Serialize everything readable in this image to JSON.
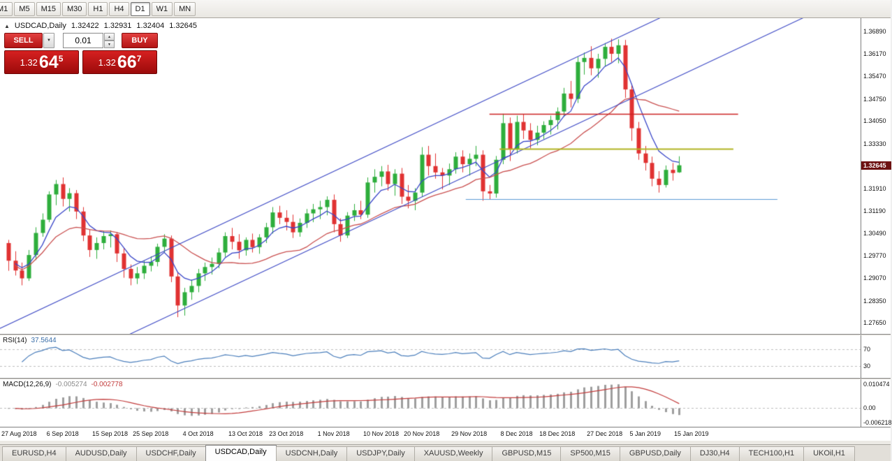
{
  "toolbar": {
    "timeframes": [
      "M1",
      "M5",
      "M15",
      "M30",
      "H1",
      "H4",
      "D1",
      "W1",
      "MN"
    ],
    "active": "D1"
  },
  "chart": {
    "header": {
      "collapse_icon": "▲",
      "symbol_label": "USDCAD,Daily",
      "open": "1.32422",
      "high": "1.32931",
      "low": "1.32404",
      "close": "1.32645"
    },
    "price_axis_labels": [
      "1.36890",
      "1.36170",
      "1.35470",
      "1.34750",
      "1.34050",
      "1.33330",
      "1.31910",
      "1.31190",
      "1.30490",
      "1.29770",
      "1.29070",
      "1.28350",
      "1.27650"
    ],
    "current_price_tag": "1.32645"
  },
  "trade_panel": {
    "sell_label": "SELL",
    "buy_label": "BUY",
    "volume": "0.01",
    "dropdown_icon": "▼",
    "spin_up_icon": "▲",
    "spin_down_icon": "▼",
    "sell_quote": {
      "prefix": "1.32",
      "big": "64",
      "sup": "5"
    },
    "buy_quote": {
      "prefix": "1.32",
      "big": "66",
      "sup": "7"
    }
  },
  "rsi": {
    "label": "RSI(14)",
    "value": "37.5644",
    "levels": [
      "70",
      "30"
    ]
  },
  "macd": {
    "label": "MACD(12,26,9)",
    "value_main": "-0.005274",
    "value_signal": "-0.002778",
    "axis_labels": [
      "0.010474",
      "0.00",
      "-0.006218"
    ]
  },
  "date_axis": {
    "labels": [
      {
        "text": "27 Aug 2018",
        "i": 0
      },
      {
        "text": "6 Sep 2018",
        "i": 8
      },
      {
        "text": "15 Sep 2018",
        "i": 15
      },
      {
        "text": "25 Sep 2018",
        "i": 21
      },
      {
        "text": "4 Oct 2018",
        "i": 28
      },
      {
        "text": "13 Oct 2018",
        "i": 35
      },
      {
        "text": "23 Oct 2018",
        "i": 41
      },
      {
        "text": "1 Nov 2018",
        "i": 48
      },
      {
        "text": "10 Nov 2018",
        "i": 55
      },
      {
        "text": "20 Nov 2018",
        "i": 61
      },
      {
        "text": "29 Nov 2018",
        "i": 68
      },
      {
        "text": "8 Dec 2018",
        "i": 75
      },
      {
        "text": "18 Dec 2018",
        "i": 81
      },
      {
        "text": "27 Dec 2018",
        "i": 88
      },
      {
        "text": "5 Jan 2019",
        "i": 94
      },
      {
        "text": "15 Jan 2019",
        "i": 100.8
      }
    ]
  },
  "tabs": [
    "EURUSD,H4",
    "AUDUSD,Daily",
    "USDCHF,Daily",
    "USDCAD,Daily",
    "USDCNH,Daily",
    "USDJPY,Daily",
    "XAUUSD,Weekly",
    "GBPUSD,M15",
    "SP500,M15",
    "GBPUSD,Daily",
    "DJ30,H4",
    "TECH100,H1",
    "UKOil,H1"
  ],
  "active_tab": "USDCAD,Daily",
  "colors": {
    "bull": "#2eae3c",
    "bear": "#e03232",
    "ma_fast": "#3946c8",
    "ma_slow": "#c94f4f",
    "trendline": "#3b47c4",
    "hline_red": "#cc2222",
    "hline_olive": "#b0b420",
    "hline_blue": "#5b9bd5",
    "rsi_line": "#4a7ebb",
    "level_dash": "#bdbdbd",
    "macd_hist": "#9e9e9e",
    "macd_signal": "#c23b3b",
    "price_tag_bg": "#6d1111",
    "sell_buy_red": "#c01818"
  },
  "chart_data": {
    "type": "candlestick",
    "symbol": "USDCAD",
    "timeframe": "Daily",
    "last_ohlc": {
      "open": 1.32422,
      "high": 1.32931,
      "low": 1.32404,
      "close": 1.32645
    },
    "y_range": [
      1.273,
      1.3731
    ],
    "candles": [
      [
        1.3018,
        1.3028,
        1.293,
        1.2962
      ],
      [
        1.2962,
        1.2992,
        1.2915,
        1.2931
      ],
      [
        1.2931,
        1.2956,
        1.2884,
        1.2906
      ],
      [
        1.2906,
        1.2996,
        1.2898,
        1.298
      ],
      [
        1.298,
        1.3068,
        1.2964,
        1.305
      ],
      [
        1.305,
        1.3112,
        1.3038,
        1.3092
      ],
      [
        1.3092,
        1.3182,
        1.3084,
        1.3172
      ],
      [
        1.3172,
        1.3218,
        1.3138,
        1.3205
      ],
      [
        1.3205,
        1.3226,
        1.3134,
        1.3158
      ],
      [
        1.3158,
        1.3192,
        1.3118,
        1.3176
      ],
      [
        1.3176,
        1.3186,
        1.3094,
        1.3118
      ],
      [
        1.3118,
        1.3132,
        1.3024,
        1.3042
      ],
      [
        1.3042,
        1.3062,
        1.2974,
        1.2996
      ],
      [
        1.2996,
        1.3036,
        1.2968,
        1.3018
      ],
      [
        1.3018,
        1.3056,
        1.2998,
        1.304
      ],
      [
        1.304,
        1.3058,
        1.3004,
        1.3046
      ],
      [
        1.3046,
        1.3052,
        1.2958,
        1.2985
      ],
      [
        1.2985,
        1.3002,
        1.2908,
        1.2936
      ],
      [
        1.2936,
        1.295,
        1.2884,
        1.2906
      ],
      [
        1.2906,
        1.2942,
        1.2888,
        1.2922
      ],
      [
        1.2922,
        1.2962,
        1.2904,
        1.2946
      ],
      [
        1.2946,
        1.2976,
        1.2928,
        1.2958
      ],
      [
        1.2958,
        1.3016,
        1.2944,
        1.3006
      ],
      [
        1.3006,
        1.3046,
        1.2988,
        1.3032
      ],
      [
        1.3032,
        1.3042,
        1.2894,
        1.2912
      ],
      [
        1.2912,
        1.2926,
        1.2783,
        1.282
      ],
      [
        1.282,
        1.2876,
        1.2788,
        1.2862
      ],
      [
        1.2862,
        1.2902,
        1.2838,
        1.2882
      ],
      [
        1.2882,
        1.2936,
        1.2862,
        1.2922
      ],
      [
        1.2922,
        1.2956,
        1.2898,
        1.2942
      ],
      [
        1.2942,
        1.2972,
        1.2918,
        1.2952
      ],
      [
        1.2952,
        1.3002,
        1.2938,
        1.2988
      ],
      [
        1.2988,
        1.3052,
        1.2974,
        1.304
      ],
      [
        1.304,
        1.3066,
        1.2998,
        1.3022
      ],
      [
        1.3022,
        1.3046,
        1.2968,
        1.2995
      ],
      [
        1.2995,
        1.3036,
        1.2978,
        1.3028
      ],
      [
        1.3028,
        1.3048,
        1.2988,
        1.3005
      ],
      [
        1.3005,
        1.3046,
        1.2984,
        1.3036
      ],
      [
        1.3036,
        1.3082,
        1.3018,
        1.3068
      ],
      [
        1.3068,
        1.3132,
        1.3048,
        1.3115
      ],
      [
        1.3115,
        1.3136,
        1.3078,
        1.3098
      ],
      [
        1.3098,
        1.3122,
        1.3058,
        1.3085
      ],
      [
        1.3085,
        1.3108,
        1.3034,
        1.3052
      ],
      [
        1.3052,
        1.3096,
        1.3038,
        1.3082
      ],
      [
        1.3082,
        1.3126,
        1.3066,
        1.3112
      ],
      [
        1.3112,
        1.3142,
        1.3084,
        1.3125
      ],
      [
        1.3125,
        1.3152,
        1.3094,
        1.3132
      ],
      [
        1.3132,
        1.3166,
        1.3106,
        1.3155
      ],
      [
        1.3155,
        1.3172,
        1.3052,
        1.3078
      ],
      [
        1.3078,
        1.3096,
        1.3022,
        1.3042
      ],
      [
        1.3042,
        1.3116,
        1.3034,
        1.3105
      ],
      [
        1.3105,
        1.3142,
        1.3088,
        1.3122
      ],
      [
        1.3122,
        1.3152,
        1.3094,
        1.3108
      ],
      [
        1.3108,
        1.3226,
        1.3098,
        1.321
      ],
      [
        1.321,
        1.3252,
        1.3178,
        1.3228
      ],
      [
        1.3228,
        1.3262,
        1.3198,
        1.3245
      ],
      [
        1.3245,
        1.3266,
        1.3184,
        1.3205
      ],
      [
        1.3205,
        1.3252,
        1.3168,
        1.3238
      ],
      [
        1.3238,
        1.3256,
        1.3142,
        1.3165
      ],
      [
        1.3165,
        1.3202,
        1.3128,
        1.3152
      ],
      [
        1.3152,
        1.3192,
        1.3122,
        1.3178
      ],
      [
        1.3178,
        1.3322,
        1.3164,
        1.3298
      ],
      [
        1.3298,
        1.3326,
        1.3232,
        1.3262
      ],
      [
        1.3262,
        1.3302,
        1.3222,
        1.3242
      ],
      [
        1.3242,
        1.3256,
        1.3188,
        1.3232
      ],
      [
        1.3232,
        1.327,
        1.3202,
        1.3252
      ],
      [
        1.3252,
        1.3306,
        1.3238,
        1.3292
      ],
      [
        1.3292,
        1.3312,
        1.3242,
        1.3268
      ],
      [
        1.3268,
        1.3302,
        1.3232,
        1.3285
      ],
      [
        1.3285,
        1.3326,
        1.3262,
        1.3298
      ],
      [
        1.3298,
        1.3312,
        1.3152,
        1.3182
      ],
      [
        1.3182,
        1.3202,
        1.3156,
        1.3175
      ],
      [
        1.3175,
        1.3294,
        1.3162,
        1.3282
      ],
      [
        1.3282,
        1.3428,
        1.3268,
        1.3398
      ],
      [
        1.3398,
        1.3416,
        1.3278,
        1.3315
      ],
      [
        1.3315,
        1.3422,
        1.3302,
        1.3402
      ],
      [
        1.3402,
        1.3426,
        1.3348,
        1.3375
      ],
      [
        1.3375,
        1.3398,
        1.3318,
        1.3345
      ],
      [
        1.3345,
        1.339,
        1.3328,
        1.3368
      ],
      [
        1.3368,
        1.3404,
        1.3348,
        1.3392
      ],
      [
        1.3392,
        1.3422,
        1.3362,
        1.3408
      ],
      [
        1.3408,
        1.3448,
        1.3378,
        1.3435
      ],
      [
        1.3435,
        1.351,
        1.3418,
        1.3492
      ],
      [
        1.3492,
        1.3532,
        1.3448,
        1.3475
      ],
      [
        1.3475,
        1.3608,
        1.3462,
        1.3592
      ],
      [
        1.3592,
        1.3622,
        1.3552,
        1.3605
      ],
      [
        1.3605,
        1.3642,
        1.355,
        1.3572
      ],
      [
        1.3572,
        1.3618,
        1.3542,
        1.3602
      ],
      [
        1.3602,
        1.3652,
        1.3578,
        1.364
      ],
      [
        1.364,
        1.3666,
        1.3592,
        1.3618
      ],
      [
        1.3618,
        1.3664,
        1.3588,
        1.3645
      ],
      [
        1.3645,
        1.3662,
        1.3478,
        1.3505
      ],
      [
        1.3505,
        1.3522,
        1.3342,
        1.3382
      ],
      [
        1.3382,
        1.3402,
        1.3282,
        1.3302
      ],
      [
        1.3302,
        1.3326,
        1.3248,
        1.3272
      ],
      [
        1.3272,
        1.3292,
        1.3198,
        1.3222
      ],
      [
        1.3222,
        1.3246,
        1.3178,
        1.3202
      ],
      [
        1.3202,
        1.3264,
        1.3194,
        1.325
      ],
      [
        1.325,
        1.3272,
        1.3216,
        1.324
      ],
      [
        1.32422,
        1.32931,
        1.32404,
        1.32645
      ]
    ],
    "overlays": {
      "ma_fast": {
        "type": "EMA",
        "period": 6
      },
      "ma_slow": {
        "type": "SMA",
        "period": 20
      },
      "trendlines": [
        {
          "i1": -1.2,
          "p1": 1.2748,
          "i2": 95.2,
          "p2": 1.3722
        },
        {
          "i1": 19.8,
          "p1": 1.2748,
          "i2": 116.3,
          "p2": 1.3722
        }
      ],
      "hlines": [
        {
          "price": 1.3427,
          "i1": 71.0,
          "i2": 107.7,
          "color_key": "hline_red",
          "w": 1.4
        },
        {
          "price": 1.3317,
          "i1": 72.5,
          "i2": 107.0,
          "color_key": "hline_olive",
          "w": 1.8
        },
        {
          "price": 1.3157,
          "i1": 67.5,
          "i2": 113.5,
          "color_key": "hline_blue",
          "w": 1.2
        }
      ]
    },
    "indicators": {
      "rsi": {
        "period": 14,
        "current": 37.5644,
        "levels": [
          70,
          30
        ],
        "scale": [
          0,
          105
        ]
      },
      "macd": {
        "fast": 12,
        "slow": 26,
        "signal": 9,
        "current_main": -0.005274,
        "current_signal": -0.002778,
        "scale": [
          -0.0082,
          0.01263
        ],
        "axis_values": [
          0.010474,
          0,
          -0.006218
        ]
      }
    }
  }
}
